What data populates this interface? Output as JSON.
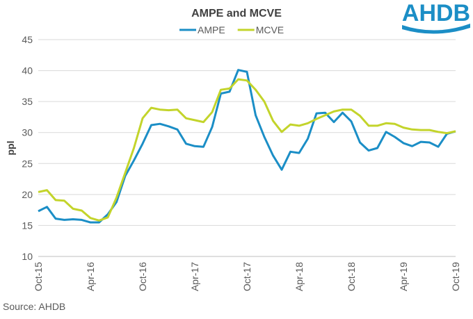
{
  "chart_data": {
    "type": "line",
    "title": "AMPE and MCVE",
    "y_label": "ppl",
    "source": "Source: AHDB",
    "logo": "AHDB",
    "categories": [
      "Oct-15",
      null,
      null,
      null,
      null,
      null,
      "Apr-16",
      null,
      null,
      null,
      null,
      null,
      "Oct-16",
      null,
      null,
      null,
      null,
      null,
      "Apr-17",
      null,
      null,
      null,
      null,
      null,
      "Oct-17",
      null,
      null,
      null,
      null,
      null,
      "Apr-18",
      null,
      null,
      null,
      null,
      null,
      "Oct-18",
      null,
      null,
      null,
      null,
      null,
      "Apr-19",
      null,
      null,
      null,
      null,
      null,
      "Oct-19"
    ],
    "series": [
      {
        "name": "AMPE",
        "color": "#1b8ec6",
        "values": [
          17.3,
          18.0,
          16.1,
          15.9,
          16.0,
          15.9,
          15.5,
          15.5,
          16.8,
          18.8,
          23.0,
          25.5,
          28.2,
          31.2,
          31.4,
          31.0,
          30.5,
          28.2,
          27.8,
          27.7,
          30.9,
          36.3,
          36.6,
          40.1,
          39.8,
          32.8,
          29.3,
          26.3,
          24.0,
          26.9,
          26.7,
          29.0,
          33.1,
          33.2,
          31.7,
          33.2,
          31.8,
          28.4,
          27.1,
          27.5,
          30.1,
          29.3,
          28.3,
          27.8,
          28.5,
          28.4,
          27.7,
          29.8,
          30.2
        ]
      },
      {
        "name": "MCVE",
        "color": "#c3d42b",
        "values": [
          20.4,
          20.7,
          19.1,
          19.0,
          17.7,
          17.4,
          16.2,
          15.8,
          16.3,
          19.5,
          23.5,
          27.5,
          32.3,
          34.0,
          33.7,
          33.6,
          33.7,
          32.3,
          32.0,
          31.7,
          33.3,
          36.9,
          37.1,
          38.6,
          38.4,
          36.9,
          35.0,
          31.9,
          30.1,
          31.3,
          31.1,
          31.5,
          32.2,
          32.8,
          33.4,
          33.7,
          33.7,
          32.7,
          31.1,
          31.1,
          31.5,
          31.4,
          30.8,
          30.5,
          30.4,
          30.4,
          30.1,
          29.9,
          30.2
        ]
      }
    ],
    "ylim": [
      10,
      45
    ],
    "yticks": [
      10,
      15,
      20,
      25,
      30,
      35,
      40,
      45
    ],
    "grid": true
  }
}
